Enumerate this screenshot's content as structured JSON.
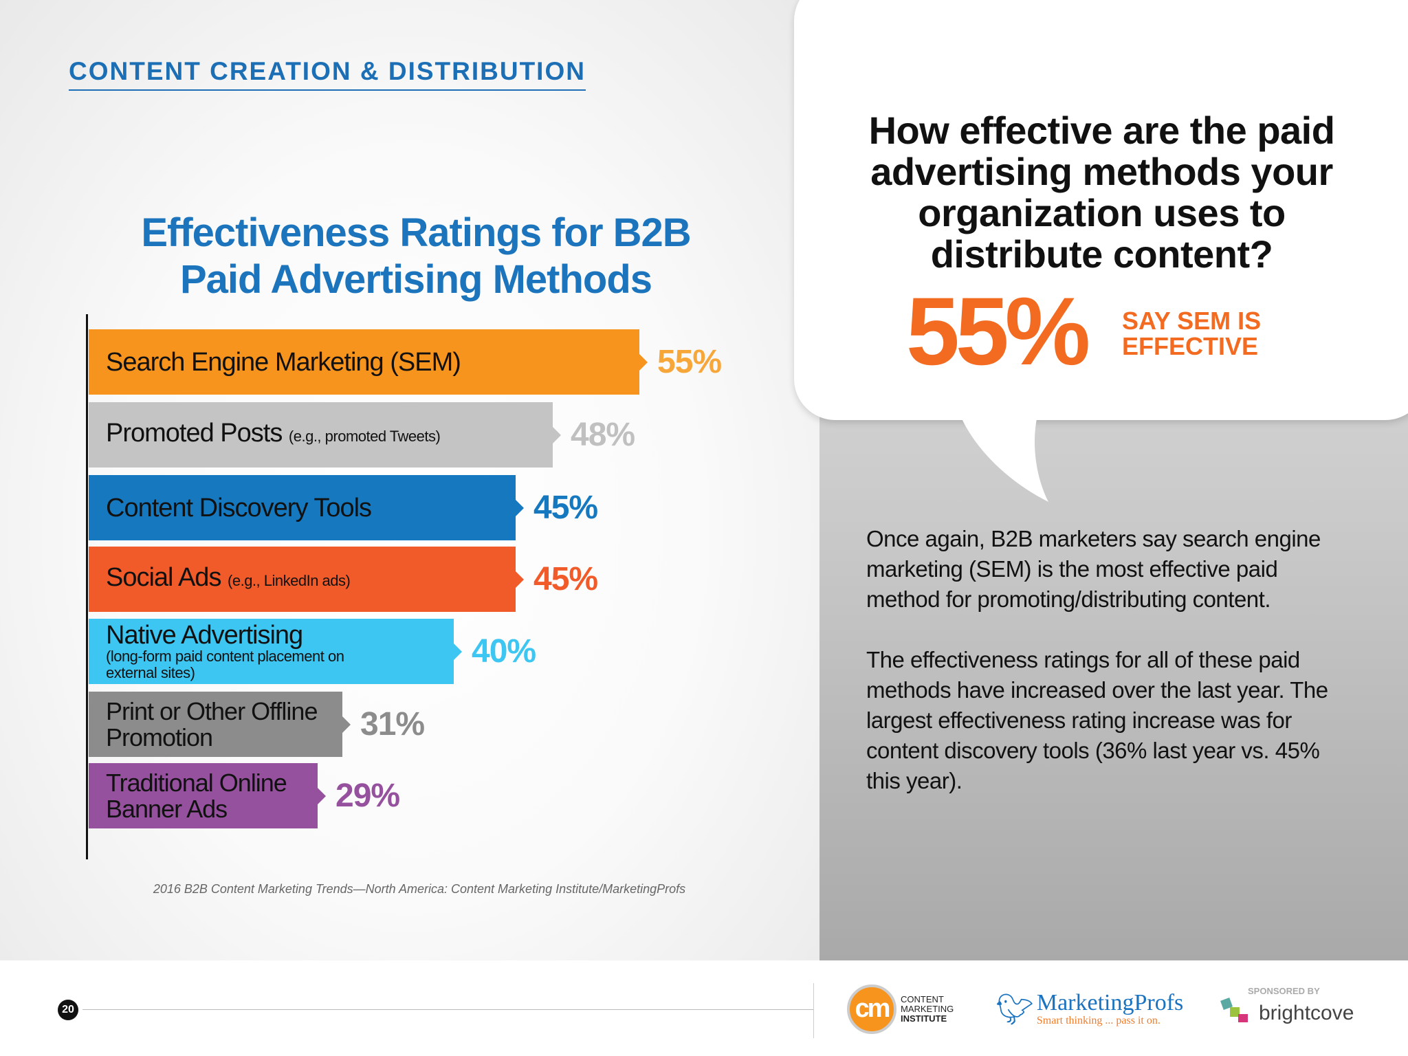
{
  "header": {
    "section": "CONTENT CREATION & DISTRIBUTION"
  },
  "chart_data": {
    "type": "bar",
    "orientation": "horizontal",
    "title": "Effectiveness Ratings for B2B Paid Advertising Methods",
    "title_lines": [
      "Effectiveness Ratings for B2B",
      "Paid Advertising Methods"
    ],
    "categories": [
      "Search Engine Marketing (SEM)",
      "Promoted Posts",
      "Content Discovery Tools",
      "Social Ads",
      "Native Advertising",
      "Print or Other Offline Promotion",
      "Traditional Online Banner Ads"
    ],
    "bars": [
      {
        "label": "Search Engine Marketing (SEM)",
        "sub": "",
        "value": 55,
        "text": "55%",
        "color": "#f7941d",
        "label_color": "#f7a63a"
      },
      {
        "label": "Promoted Posts",
        "sub": "(e.g., promoted Tweets)",
        "value": 48,
        "text": "48%",
        "color": "#c4c4c4",
        "label_color": "#c0c0c0"
      },
      {
        "label": "Content Discovery Tools",
        "sub": "",
        "value": 45,
        "text": "45%",
        "color": "#1679bf",
        "label_color": "#1679bf"
      },
      {
        "label": "Social Ads",
        "sub": "(e.g., LinkedIn ads)",
        "value": 45,
        "text": "45%",
        "color": "#f15a29",
        "label_color": "#f15a29"
      },
      {
        "label": "Native Advertising",
        "sub": "",
        "note": "(long-form paid content placement on external sites)",
        "value": 40,
        "text": "40%",
        "color": "#3ec6f2",
        "label_color": "#3ec6f2"
      },
      {
        "label": "Print or Other Offline Promotion",
        "sub": "",
        "value": 31,
        "text": "31%",
        "color": "#8c8c8c",
        "label_color": "#8c8c8c"
      },
      {
        "label": "Traditional Online Banner Ads",
        "sub": "",
        "value": 29,
        "text": "29%",
        "color": "#95519d",
        "label_color": "#95519d"
      }
    ],
    "unit": "%",
    "grid": false,
    "legend": "none",
    "source": "2016 B2B Content Marketing Trends—North America: Content Marketing Institute/MarketingProfs"
  },
  "callout": {
    "question": "How effective are the paid advertising methods your organization uses to distribute content?",
    "stat": "55%",
    "stat_caption_1": "SAY SEM IS",
    "stat_caption_2": "EFFECTIVE",
    "accent": "#f26b21"
  },
  "body": {
    "p1": "Once again, B2B marketers say search engine marketing (SEM) is the most effective paid method for promoting/distributing content.",
    "p2": "The effectiveness ratings for all of these paid methods have increased over the last year. The largest effectiveness rating increase was for content discovery tools (36% last year vs. 45% this year)."
  },
  "footer": {
    "page": "20",
    "cmi": {
      "logo": "cm",
      "line1": "CONTENT",
      "line2": "MARKETING",
      "line3": "INSTITUTE"
    },
    "mp": {
      "name": "MarketingProfs",
      "tagline": "Smart thinking ... pass it on."
    },
    "sponsor": {
      "label": "SPONSORED BY",
      "name": "brightcove"
    }
  }
}
